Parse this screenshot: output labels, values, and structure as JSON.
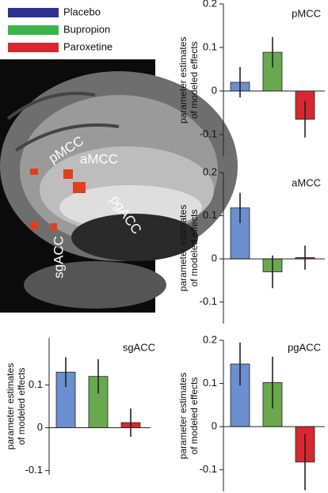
{
  "legend": [
    {
      "name": "Placebo",
      "color": "#2e3192"
    },
    {
      "name": "Bupropion",
      "color": "#3cb54a"
    },
    {
      "name": "Paroxetine",
      "color": "#d7282f"
    }
  ],
  "brain_image": {
    "labels": [
      "pMCC",
      "aMCC",
      "pgACC",
      "sgACC"
    ]
  },
  "chart_data": [
    {
      "type": "bar",
      "title": "pMCC",
      "ylabel": [
        "parameter estimates",
        "of modeled effects"
      ],
      "values": [
        0.02,
        0.089,
        -0.065
      ],
      "errors": [
        0.035,
        0.035,
        0.042
      ],
      "colors": [
        "#6b8fcf",
        "#6aa84f",
        "#d7282f"
      ],
      "ylim": [
        -0.15,
        0.2
      ],
      "yticks": [
        -0.1,
        0,
        0.1,
        0.2
      ]
    },
    {
      "type": "bar",
      "title": "aMCC",
      "ylabel": [
        "parameter estimates",
        "of modeled effects"
      ],
      "values": [
        0.118,
        -0.03,
        0.003
      ],
      "errors": [
        0.035,
        0.038,
        0.028
      ],
      "colors": [
        "#6b8fcf",
        "#6aa84f",
        "#d7282f"
      ],
      "ylim": [
        -0.15,
        0.2
      ],
      "yticks": [
        -0.1,
        0,
        0.1,
        0.2
      ]
    },
    {
      "type": "bar",
      "title": "sgACC",
      "ylabel": [
        "parameter estimates",
        "of modeled effects"
      ],
      "values": [
        0.13,
        0.12,
        0.012
      ],
      "errors": [
        0.035,
        0.04,
        0.033
      ],
      "colors": [
        "#6b8fcf",
        "#6aa84f",
        "#d7282f"
      ],
      "ylim": [
        -0.11,
        0.21
      ],
      "yticks": [
        -0.1,
        0,
        0.1
      ]
    },
    {
      "type": "bar",
      "title": "pgACC",
      "ylabel": [
        "parameter estimates",
        "of modeled effects"
      ],
      "values": [
        0.145,
        0.102,
        -0.082
      ],
      "errors": [
        0.05,
        0.06,
        0.065
      ],
      "colors": [
        "#6b8fcf",
        "#6aa84f",
        "#d7282f"
      ],
      "ylim": [
        -0.15,
        0.2
      ],
      "yticks": [
        -0.1,
        0,
        0.1,
        0.2
      ]
    }
  ]
}
